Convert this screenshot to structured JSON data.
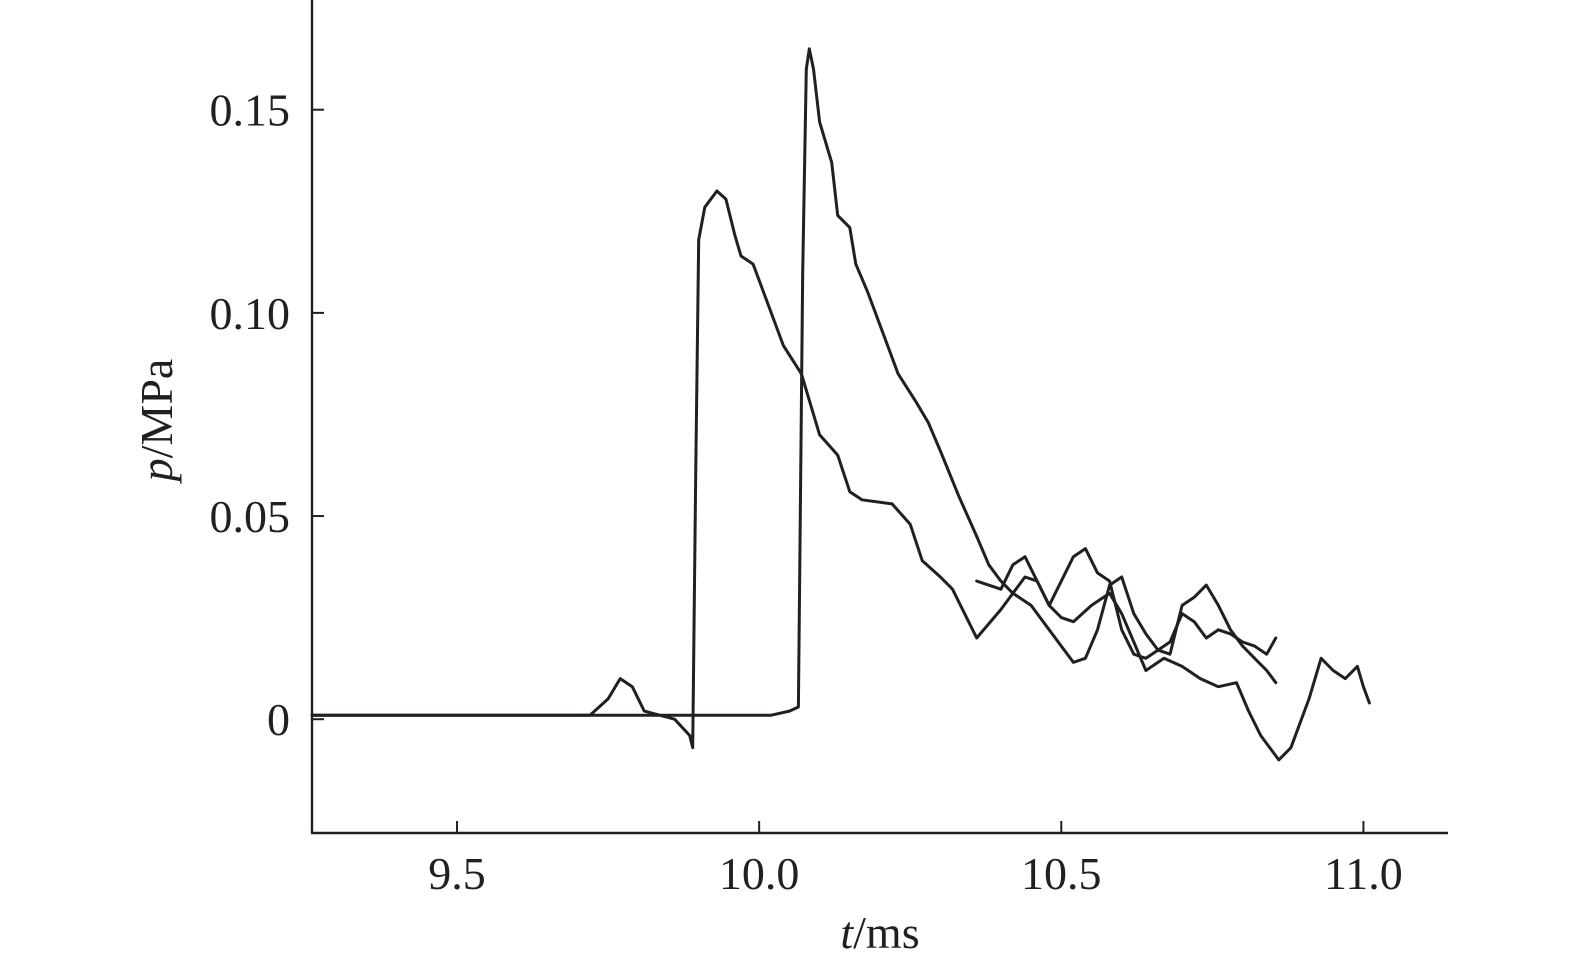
{
  "chart_data": {
    "type": "line",
    "title": "",
    "xlabel": {
      "var": "t",
      "unit": "/ms"
    },
    "ylabel": {
      "var": "p",
      "unit": "/MPa"
    },
    "xlim": [
      9.26,
      11.14
    ],
    "ylim": [
      -0.028,
      0.177
    ],
    "xticks": [
      9.5,
      10.0,
      10.5,
      11.0
    ],
    "xtick_labels": [
      "9.5",
      "10.0",
      "10.5",
      "11.0"
    ],
    "yticks": [
      0,
      0.05,
      0.1,
      0.15
    ],
    "ytick_labels": [
      "0",
      "0.05",
      "0.10",
      "0.15"
    ],
    "grid": false,
    "legend": "none",
    "colors": {
      "line": "#231f20",
      "axis": "#231f20"
    },
    "series": [
      {
        "points": [
          [
            9.26,
            0.001
          ],
          [
            9.4,
            0.001
          ],
          [
            9.5,
            0.001
          ],
          [
            9.6,
            0.001
          ],
          [
            9.72,
            0.001
          ],
          [
            9.75,
            0.005
          ],
          [
            9.77,
            0.01
          ],
          [
            9.79,
            0.008
          ],
          [
            9.81,
            0.002
          ],
          [
            9.86,
            0.0
          ],
          [
            9.885,
            -0.004
          ],
          [
            9.89,
            -0.007
          ],
          [
            9.895,
            0.06
          ],
          [
            9.9,
            0.118
          ],
          [
            9.91,
            0.126
          ],
          [
            9.93,
            0.13
          ],
          [
            9.945,
            0.128
          ],
          [
            9.96,
            0.119
          ],
          [
            9.97,
            0.114
          ],
          [
            9.99,
            0.112
          ],
          [
            10.01,
            0.104
          ],
          [
            10.04,
            0.092
          ],
          [
            10.07,
            0.085
          ],
          [
            10.1,
            0.07
          ],
          [
            10.13,
            0.065
          ],
          [
            10.15,
            0.056
          ],
          [
            10.17,
            0.054
          ],
          [
            10.22,
            0.053
          ],
          [
            10.25,
            0.048
          ],
          [
            10.27,
            0.039
          ],
          [
            10.3,
            0.035
          ],
          [
            10.32,
            0.032
          ],
          [
            10.36,
            0.02
          ],
          [
            10.4,
            0.027
          ],
          [
            10.44,
            0.035
          ],
          [
            10.46,
            0.034
          ],
          [
            10.48,
            0.028
          ],
          [
            10.5,
            0.025
          ],
          [
            10.52,
            0.024
          ],
          [
            10.55,
            0.028
          ],
          [
            10.58,
            0.031
          ],
          [
            10.6,
            0.026
          ],
          [
            10.62,
            0.019
          ],
          [
            10.64,
            0.012
          ],
          [
            10.67,
            0.015
          ],
          [
            10.7,
            0.013
          ],
          [
            10.73,
            0.01
          ],
          [
            10.76,
            0.008
          ],
          [
            10.79,
            0.009
          ],
          [
            10.81,
            0.002
          ],
          [
            10.83,
            -0.004
          ],
          [
            10.86,
            -0.01
          ],
          [
            10.88,
            -0.007
          ],
          [
            10.91,
            0.005
          ],
          [
            10.93,
            0.015
          ],
          [
            10.95,
            0.012
          ],
          [
            10.97,
            0.01
          ],
          [
            10.99,
            0.013
          ],
          [
            11.0,
            0.008
          ],
          [
            11.01,
            0.004
          ]
        ]
      },
      {
        "points": [
          [
            9.26,
            0.001
          ],
          [
            9.4,
            0.001
          ],
          [
            9.5,
            0.001
          ],
          [
            9.6,
            0.001
          ],
          [
            9.7,
            0.001
          ],
          [
            9.8,
            0.001
          ],
          [
            9.88,
            0.001
          ],
          [
            9.95,
            0.001
          ],
          [
            10.02,
            0.001
          ],
          [
            10.05,
            0.002
          ],
          [
            10.065,
            0.003
          ],
          [
            10.072,
            0.11
          ],
          [
            10.078,
            0.16
          ],
          [
            10.083,
            0.165
          ],
          [
            10.09,
            0.16
          ],
          [
            10.1,
            0.147
          ],
          [
            10.12,
            0.137
          ],
          [
            10.13,
            0.124
          ],
          [
            10.15,
            0.121
          ],
          [
            10.16,
            0.112
          ],
          [
            10.18,
            0.105
          ],
          [
            10.2,
            0.097
          ],
          [
            10.23,
            0.085
          ],
          [
            10.26,
            0.078
          ],
          [
            10.28,
            0.073
          ],
          [
            10.3,
            0.066
          ],
          [
            10.33,
            0.055
          ],
          [
            10.36,
            0.045
          ],
          [
            10.38,
            0.038
          ],
          [
            10.4,
            0.034
          ],
          [
            10.42,
            0.031
          ],
          [
            10.45,
            0.028
          ],
          [
            10.48,
            0.022
          ],
          [
            10.5,
            0.018
          ],
          [
            10.52,
            0.014
          ],
          [
            10.54,
            0.015
          ],
          [
            10.56,
            0.022
          ],
          [
            10.58,
            0.033
          ],
          [
            10.6,
            0.035
          ],
          [
            10.62,
            0.026
          ],
          [
            10.64,
            0.021
          ],
          [
            10.66,
            0.017
          ],
          [
            10.68,
            0.016
          ],
          [
            10.7,
            0.028
          ],
          [
            10.72,
            0.03
          ],
          [
            10.74,
            0.033
          ],
          [
            10.76,
            0.028
          ],
          [
            10.78,
            0.022
          ],
          [
            10.8,
            0.018
          ],
          [
            10.82,
            0.015
          ],
          [
            10.84,
            0.012
          ],
          [
            10.855,
            0.009
          ]
        ]
      },
      {
        "points": [
          [
            10.36,
            0.034
          ],
          [
            10.4,
            0.032
          ],
          [
            10.42,
            0.038
          ],
          [
            10.44,
            0.04
          ],
          [
            10.46,
            0.034
          ],
          [
            10.48,
            0.028
          ],
          [
            10.5,
            0.034
          ],
          [
            10.52,
            0.04
          ],
          [
            10.54,
            0.042
          ],
          [
            10.56,
            0.036
          ],
          [
            10.58,
            0.034
          ],
          [
            10.6,
            0.022
          ],
          [
            10.62,
            0.016
          ],
          [
            10.64,
            0.015
          ],
          [
            10.66,
            0.017
          ],
          [
            10.68,
            0.019
          ],
          [
            10.7,
            0.026
          ],
          [
            10.72,
            0.024
          ],
          [
            10.74,
            0.02
          ],
          [
            10.76,
            0.022
          ],
          [
            10.78,
            0.021
          ],
          [
            10.8,
            0.019
          ],
          [
            10.82,
            0.018
          ],
          [
            10.84,
            0.016
          ],
          [
            10.855,
            0.02
          ]
        ]
      }
    ]
  }
}
